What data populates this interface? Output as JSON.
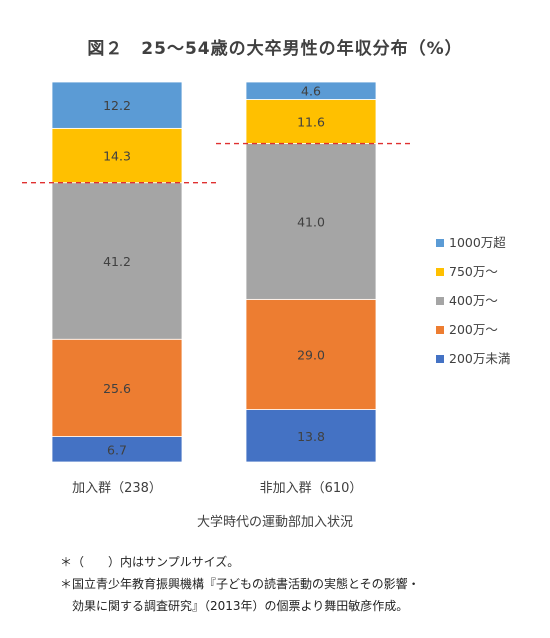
{
  "title": "図２　25〜54歳の大卒男性の年収分布（%）",
  "chart_data": {
    "type": "bar",
    "stacked": true,
    "categories": [
      "加入群（238）",
      "非加入群（610）"
    ],
    "series": [
      {
        "name": "200万未満",
        "values": [
          6.7,
          13.8
        ],
        "color": "#4472C4"
      },
      {
        "name": "200万〜",
        "values": [
          25.6,
          29.0
        ],
        "color": "#ED7D31"
      },
      {
        "name": "400万〜",
        "values": [
          41.2,
          41.0
        ],
        "color": "#A5A5A5"
      },
      {
        "name": "750万〜",
        "values": [
          14.3,
          11.6
        ],
        "color": "#FFC000"
      },
      {
        "name": "1000万超",
        "values": [
          12.2,
          4.6
        ],
        "color": "#5B9BD5"
      }
    ],
    "xlabel": "大学時代の運動部加入状況",
    "ylim": [
      0,
      100
    ],
    "grid": false,
    "legend_position": "right",
    "reference_line_color": "#E03030"
  },
  "notes": [
    "＊（　　）内はサンプルサイズ。",
    "＊国立青少年教育振興機構『子どもの読書活動の実態とその影響・",
    "効果に関する調査研究』（2013年）の個票より舞田敏彦作成。"
  ]
}
